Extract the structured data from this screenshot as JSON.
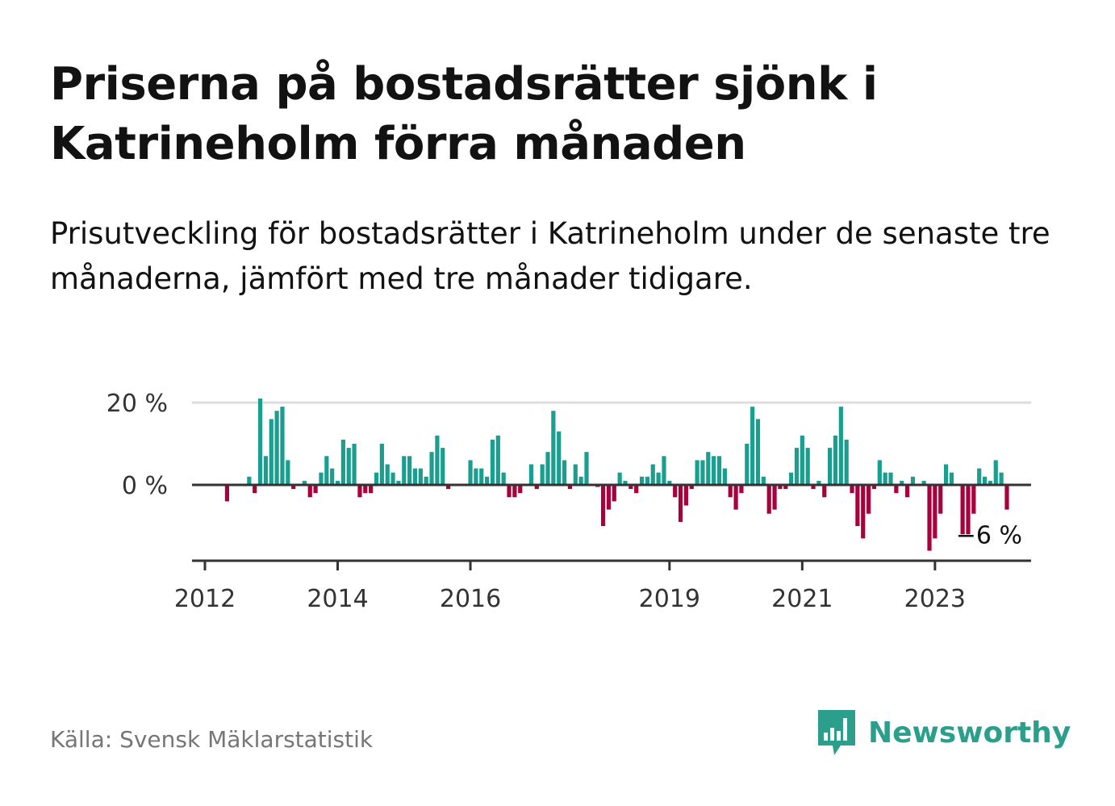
{
  "title": "Priserna på bostadsrätter sjönk i Katrineholm förra månaden",
  "subtitle": "Prisutveckling för bostadsrätter i Katrineholm under de senaste tre månaderna, jämfört med tre månader tidigare.",
  "source": "Källa: Svensk Mäklarstatistik",
  "brand": {
    "name": "Newsworthy",
    "icon": "newsworthy-logo-icon"
  },
  "colors": {
    "positive": "#1a9e8f",
    "negative": "#a8003c",
    "axis": "#333333",
    "grid": "#dddddd",
    "brand": "#2b9e8c"
  },
  "chart_data": {
    "type": "bar",
    "x_unit": "month",
    "start": "2012-01",
    "values": [
      0,
      0,
      0,
      0,
      -4,
      0,
      0,
      0,
      2,
      -2,
      21,
      7,
      16,
      18,
      19,
      6,
      -1,
      0,
      1,
      -3,
      -2,
      3,
      7,
      4,
      1,
      11,
      9,
      10,
      -3,
      -2,
      -2,
      3,
      10,
      5,
      3,
      1,
      7,
      7,
      4,
      4,
      2,
      8,
      12,
      9,
      -1,
      0,
      0,
      0,
      6,
      4,
      4,
      2,
      11,
      12,
      3,
      -3,
      -3,
      -2,
      0,
      5,
      -1,
      5,
      8,
      18,
      13,
      6,
      -1,
      5,
      2,
      8,
      0,
      -0.5,
      -10,
      -6,
      -4,
      3,
      1,
      -1,
      -2,
      2,
      2,
      5,
      3,
      7,
      1,
      -3,
      -9,
      -5,
      -1,
      6,
      6,
      8,
      7,
      7,
      4,
      -3,
      -6,
      -2,
      10,
      19,
      16,
      2,
      -7,
      -6,
      -1,
      -1,
      3,
      9,
      12,
      9,
      -1,
      1,
      -3,
      9,
      12,
      19,
      11,
      -2,
      -10,
      -13,
      -7,
      -1,
      6,
      3,
      3,
      -2,
      1,
      -3,
      2,
      0,
      1,
      -16,
      -13,
      -7,
      5,
      3,
      0,
      -12,
      -12,
      -7,
      4,
      2,
      1,
      6,
      3,
      -6
    ],
    "x_ticks": [
      {
        "label": "2012",
        "date": "2012-01"
      },
      {
        "label": "2014",
        "date": "2014-01"
      },
      {
        "label": "2016",
        "date": "2016-01"
      },
      {
        "label": "2019",
        "date": "2019-01"
      },
      {
        "label": "2021",
        "date": "2021-01"
      },
      {
        "label": "2023",
        "date": "2023-01"
      }
    ],
    "y_ticks": [
      {
        "label": "20 %",
        "value": 20
      },
      {
        "label": "0 %",
        "value": 0
      }
    ],
    "ylim": [
      -18,
      20
    ],
    "last_label": "−6 %",
    "grid": true
  }
}
